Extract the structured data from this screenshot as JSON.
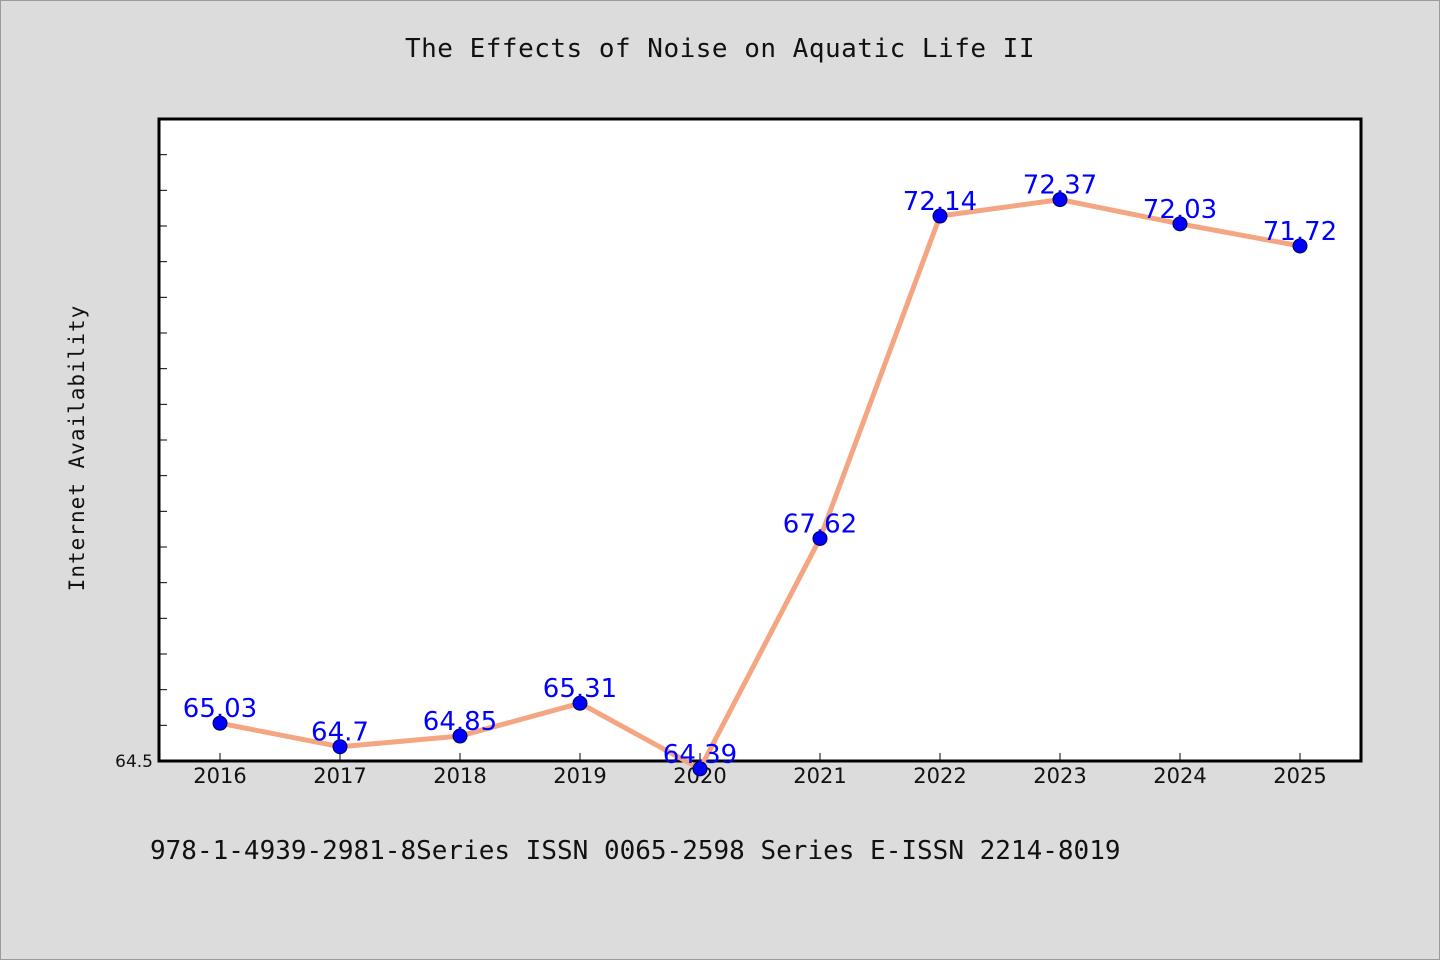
{
  "chart_data": {
    "type": "line",
    "title": "The Effects of Noise on Aquatic Life II",
    "xlabel": "",
    "ylabel": "Internet Availability",
    "categories": [
      "2016",
      "2017",
      "2018",
      "2019",
      "2020",
      "2021",
      "2022",
      "2023",
      "2024",
      "2025"
    ],
    "series": [
      {
        "values": [
          65.03,
          64.7,
          64.85,
          65.31,
          64.39,
          67.62,
          72.14,
          72.37,
          72.03,
          71.72
        ],
        "labels": [
          "65.03",
          "64.7",
          "64.85",
          "65.31",
          "64.39",
          "67.62",
          "72.14",
          "72.37",
          "72.03",
          "71.72"
        ],
        "line_color": "#f4a582",
        "marker_color": "#0000ff"
      }
    ],
    "ylim": [
      64.5,
      73.5
    ],
    "y_min_label": "64.5",
    "grid": false,
    "legend": "none"
  },
  "footer": {
    "text": "978-1-4939-2981-8Series ISSN 0065-2598 Series E-ISSN 2214-8019"
  },
  "colors": {
    "background": "#dcdcdc",
    "plot_background": "#ffffff",
    "axis": "#000000",
    "label_text": "#0000ff"
  }
}
